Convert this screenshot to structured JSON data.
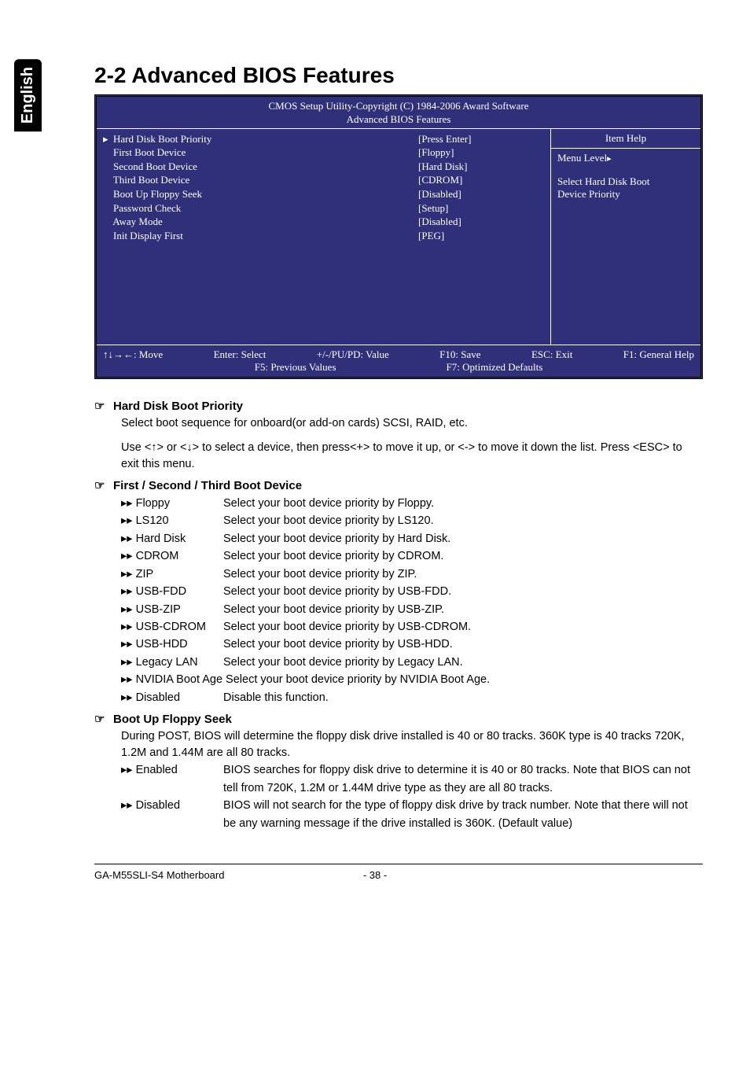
{
  "side_tab": "English",
  "section_title": "2-2   Advanced BIOS Features",
  "bios": {
    "header1": "CMOS Setup Utility-Copyright (C) 1984-2006 Award Software",
    "header2": "Advanced BIOS Features",
    "items": [
      {
        "label": "Hard Disk Boot Priority",
        "value": "[Press Enter]",
        "marker": "▸"
      },
      {
        "label": "First Boot Device",
        "value": "[Floppy]",
        "marker": ""
      },
      {
        "label": "Second Boot Device",
        "value": "[Hard Disk]",
        "marker": ""
      },
      {
        "label": "Third Boot Device",
        "value": "[CDROM]",
        "marker": ""
      },
      {
        "label": "Boot Up Floppy Seek",
        "value": "[Disabled]",
        "marker": ""
      },
      {
        "label": "Password Check",
        "value": "[Setup]",
        "marker": ""
      },
      {
        "label": "Away Mode",
        "value": "[Disabled]",
        "marker": ""
      },
      {
        "label": "Init Display First",
        "value": "[PEG]",
        "marker": ""
      }
    ],
    "help_title": "Item Help",
    "help_menu": "Menu Level",
    "help_text1": "Select Hard Disk Boot",
    "help_text2": "Device Priority",
    "footer": {
      "move": "↑↓→←: Move",
      "enter": "Enter: Select",
      "value": "+/-/PU/PD: Value",
      "save": "F10: Save",
      "esc": "ESC: Exit",
      "help": "F1: General Help",
      "prev": "F5: Previous Values",
      "opt": "F7: Optimized Defaults"
    }
  },
  "hd_priority": {
    "title": "Hard Disk Boot Priority",
    "desc": "Select boot sequence for onboard(or add-on cards) SCSI, RAID, etc.",
    "desc2": "Use <↑> or <↓> to select a device, then press<+> to move it up, or <-> to move it down the list. Press <ESC> to exit this menu."
  },
  "boot_device": {
    "title": "First / Second / Third Boot Device",
    "options": [
      {
        "name": "Floppy",
        "desc": "Select your boot device priority by Floppy."
      },
      {
        "name": "LS120",
        "desc": "Select your boot device priority by LS120."
      },
      {
        "name": "Hard Disk",
        "desc": "Select your boot device priority by Hard Disk."
      },
      {
        "name": "CDROM",
        "desc": "Select your boot device priority by CDROM."
      },
      {
        "name": "ZIP",
        "desc": "Select your boot device priority by ZIP."
      },
      {
        "name": "USB-FDD",
        "desc": "Select your boot device priority by USB-FDD."
      },
      {
        "name": "USB-ZIP",
        "desc": "Select your boot device priority by USB-ZIP."
      },
      {
        "name": "USB-CDROM",
        "desc": "Select your boot device priority by USB-CDROM."
      },
      {
        "name": "USB-HDD",
        "desc": "Select your boot device priority by USB-HDD."
      },
      {
        "name": "Legacy LAN",
        "desc": "Select your boot device priority by Legacy LAN."
      },
      {
        "name": "NVIDIA Boot Age",
        "desc": "Select your boot device priority by NVIDIA Boot Age.",
        "inline": true
      },
      {
        "name": "Disabled",
        "desc": "Disable this function."
      }
    ]
  },
  "floppy_seek": {
    "title": "Boot Up Floppy Seek",
    "desc": "During POST, BIOS will determine the floppy disk drive installed is 40 or 80 tracks. 360K type is 40 tracks 720K, 1.2M and 1.44M are all 80 tracks.",
    "options": [
      {
        "name": "Enabled",
        "desc": "BIOS searches for floppy disk drive to determine it is 40 or 80 tracks. Note that BIOS can not tell from 720K, 1.2M or 1.44M drive type as they are all 80 tracks."
      },
      {
        "name": "Disabled",
        "desc": "BIOS will not search for the type of floppy disk drive by track number. Note that there will not be any warning message if the drive installed is 360K. (Default value)"
      }
    ]
  },
  "footer": {
    "left": "GA-M55SLI-S4 Motherboard",
    "center": "- 38 -"
  }
}
